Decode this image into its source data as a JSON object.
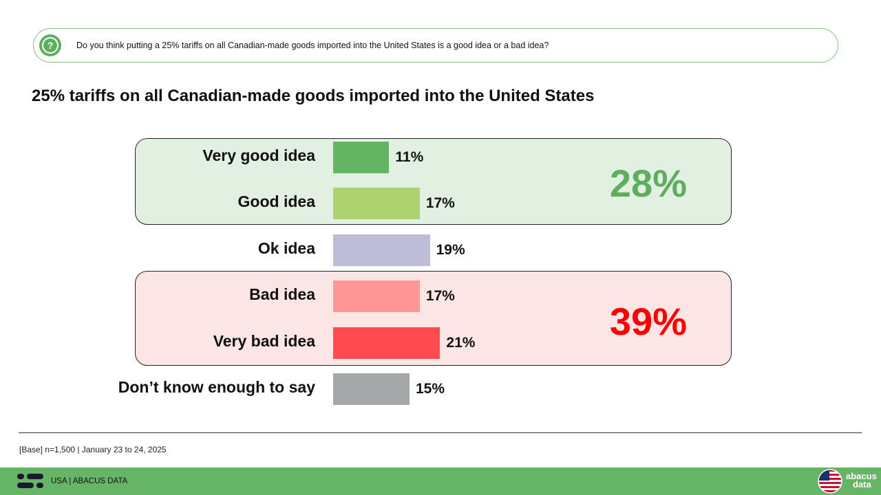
{
  "question": {
    "icon": "question-icon",
    "text": "Do you think putting a 25% tariffs on all Canadian-made goods imported into the United States is a good idea or a bad idea?"
  },
  "chart_data": {
    "type": "bar",
    "orientation": "horizontal",
    "title": "25% tariffs on all Canadian-made goods imported into the United States",
    "categories": [
      "Very good idea",
      "Good idea",
      "Ok idea",
      "Bad idea",
      "Very bad idea",
      "Don’t know enough to say"
    ],
    "values": [
      11,
      17,
      19,
      17,
      21,
      15
    ],
    "value_labels": [
      "11%",
      "17%",
      "19%",
      "17%",
      "21%",
      "15%"
    ],
    "colors": [
      "#63b463",
      "#add46c",
      "#bdbdd8",
      "#fe9696",
      "#ff4a50",
      "#a5a8a8"
    ],
    "groups": [
      {
        "total_label": "28%",
        "members": [
          "Very good idea",
          "Good idea"
        ],
        "color": "#5fae5f",
        "background": "#e1f0e1"
      },
      {
        "total_label": "39%",
        "members": [
          "Bad idea",
          "Very bad idea"
        ],
        "color": "#ff0000",
        "background": "#fbe5e5"
      }
    ],
    "xlim": [
      0,
      100
    ],
    "grid": false,
    "legend": "none"
  },
  "footer": {
    "base_note": "[Base] n=1,500 | January 23 to 24, 2025",
    "label": "USA  |  ABACUS DATA",
    "brand_line1": "abacus",
    "brand_line2": "data",
    "flag_icon": "us-flag-icon",
    "logo_icon": "abacus-logo-icon",
    "accent_color": "#66b566"
  }
}
